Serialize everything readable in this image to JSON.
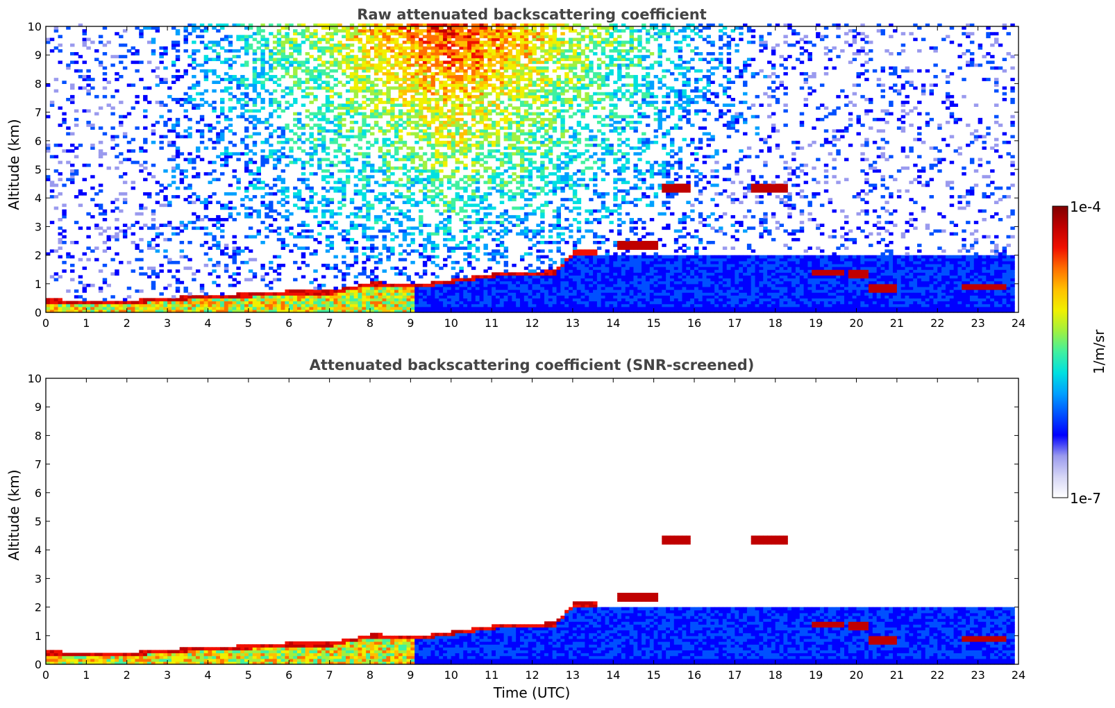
{
  "chart_data": [
    {
      "type": "heatmap",
      "title": "Raw attenuated backscattering coefficient",
      "xlabel": "",
      "ylabel": "Altitude (km)",
      "xlim": [
        0,
        24
      ],
      "ylim": [
        0,
        10
      ],
      "xticks": [
        "0",
        "1",
        "2",
        "3",
        "4",
        "5",
        "6",
        "7",
        "8",
        "9",
        "10",
        "11",
        "12",
        "13",
        "14",
        "15",
        "16",
        "17",
        "18",
        "19",
        "20",
        "21",
        "22",
        "23",
        "24"
      ],
      "yticks": [
        "0",
        "1",
        "2",
        "3",
        "4",
        "5",
        "6",
        "7",
        "8",
        "9",
        "10"
      ],
      "data_end_time": 23.85,
      "boundary_layer_top_km": [
        {
          "time": 0.2,
          "value": 0.3
        },
        {
          "time": 1,
          "value": 0.2
        },
        {
          "time": 2,
          "value": 0.25
        },
        {
          "time": 3,
          "value": 0.35
        },
        {
          "time": 4,
          "value": 0.45
        },
        {
          "time": 5,
          "value": 0.5
        },
        {
          "time": 6,
          "value": 0.6
        },
        {
          "time": 7,
          "value": 0.6
        },
        {
          "time": 8,
          "value": 0.9
        },
        {
          "time": 9,
          "value": 0.8
        },
        {
          "time": 10,
          "value": 1.0
        },
        {
          "time": 11,
          "value": 1.2
        },
        {
          "time": 12.5,
          "value": 1.3
        },
        {
          "time": 13,
          "value": 2.0
        }
      ],
      "cloud_layers_km": [
        {
          "start": 14,
          "end": 15.0,
          "altitude": 2.3
        },
        {
          "start": 15.1,
          "end": 15.8,
          "altitude": 4.3
        },
        {
          "start": 17.3,
          "end": 18.2,
          "altitude": 4.3
        },
        {
          "start": 18.8,
          "end": 19.7,
          "altitude": 1.35
        },
        {
          "start": 19.8,
          "end": 20.3,
          "altitude": 1.3
        },
        {
          "start": 20.3,
          "end": 21.0,
          "altitude": 0.8
        },
        {
          "start": 22.6,
          "end": 23.7,
          "altitude": 0.85
        }
      ]
    },
    {
      "type": "heatmap",
      "title": "Attenuated backscattering coefficient (SNR-screened)",
      "xlabel": "Time (UTC)",
      "ylabel": "Altitude (km)",
      "xlim": [
        0,
        24
      ],
      "ylim": [
        0,
        10
      ],
      "xticks": [
        "0",
        "1",
        "2",
        "3",
        "4",
        "5",
        "6",
        "7",
        "8",
        "9",
        "10",
        "11",
        "12",
        "13",
        "14",
        "15",
        "16",
        "17",
        "18",
        "19",
        "20",
        "21",
        "22",
        "23",
        "24"
      ],
      "yticks": [
        "0",
        "1",
        "2",
        "3",
        "4",
        "5",
        "6",
        "7",
        "8",
        "9",
        "10"
      ],
      "data_end_time": 23.85
    }
  ],
  "colorbar": {
    "label": "1/m/sr",
    "min_label": "1e-7",
    "max_label": "1e-4",
    "scale": "log",
    "colormap": [
      "#ffffff",
      "#d6d6f5",
      "#9a9aee",
      "#0000ff",
      "#0050ff",
      "#00a0ff",
      "#00e0e0",
      "#40f0a0",
      "#a0f040",
      "#f0f000",
      "#ffc000",
      "#ff7000",
      "#f01000",
      "#c00000",
      "#800000"
    ]
  }
}
